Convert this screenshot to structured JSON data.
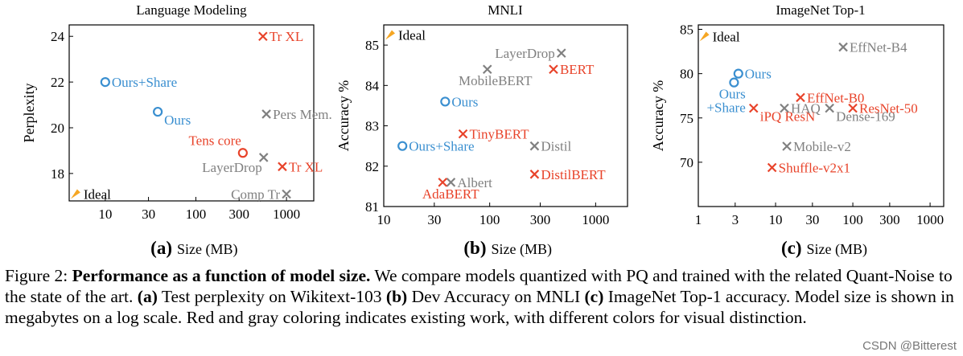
{
  "chart_data": [
    {
      "type": "scatter",
      "title": "Language Modeling",
      "panel_letter": "(a)",
      "xlabel": "Size (MB)",
      "ylabel": "Perplexity",
      "x_scale": "log",
      "xlim": [
        4,
        2000
      ],
      "ylim": [
        16.8,
        24.5
      ],
      "x_ticks": [
        10,
        30,
        100,
        300,
        1000
      ],
      "x_tick_labels": [
        "10",
        "30",
        "100",
        "300",
        "1000"
      ],
      "y_ticks": [
        18,
        20,
        22,
        24
      ],
      "y_tick_labels": [
        "18",
        "20",
        "22",
        "24"
      ],
      "ideal": {
        "label": "Ideal",
        "x": 4.7,
        "y": 17.1
      },
      "points": [
        {
          "label": "Tr XL",
          "x": 550,
          "y": 24.0,
          "marker": "x",
          "color": "red",
          "label_pos": "right"
        },
        {
          "label": "Ours+Share",
          "x": 10,
          "y": 22.0,
          "marker": "o",
          "color": "blue",
          "label_pos": "right"
        },
        {
          "label": "Ours",
          "x": 38,
          "y": 20.7,
          "marker": "o",
          "color": "blue",
          "label_pos": "below-right"
        },
        {
          "label": "Pers Mem.",
          "x": 600,
          "y": 20.6,
          "marker": "x",
          "color": "gray",
          "label_pos": "right"
        },
        {
          "label": "Tens core",
          "x": 330,
          "y": 18.9,
          "marker": "o",
          "color": "red",
          "label_pos": "above-left"
        },
        {
          "label": "LayerDrop",
          "x": 560,
          "y": 18.7,
          "marker": "x",
          "color": "gray",
          "label_pos": "below-left"
        },
        {
          "label": "Tr XL",
          "x": 900,
          "y": 18.3,
          "marker": "x",
          "color": "red",
          "label_pos": "right"
        },
        {
          "label": "Comp Tr",
          "x": 1000,
          "y": 17.1,
          "marker": "x",
          "color": "gray",
          "label_pos": "left"
        }
      ]
    },
    {
      "type": "scatter",
      "title": "MNLI",
      "panel_letter": "(b)",
      "xlabel": "Size (MB)",
      "ylabel": "Accuracy %",
      "x_scale": "log",
      "xlim": [
        10,
        2000
      ],
      "ylim": [
        81,
        85.5
      ],
      "x_ticks": [
        10,
        30,
        100,
        300,
        1000
      ],
      "x_tick_labels": [
        "10",
        "30",
        "100",
        "300",
        "1000"
      ],
      "y_ticks": [
        81,
        82,
        83,
        84,
        85
      ],
      "y_tick_labels": [
        "81",
        "82",
        "83",
        "84",
        "85"
      ],
      "ideal": {
        "label": "Ideal",
        "x": 11.5,
        "y": 85.25
      },
      "points": [
        {
          "label": "LayerDrop",
          "x": 475,
          "y": 84.8,
          "marker": "x",
          "color": "gray",
          "label_pos": "left"
        },
        {
          "label": "BERT",
          "x": 400,
          "y": 84.4,
          "marker": "x",
          "color": "red",
          "label_pos": "right"
        },
        {
          "label": "MobileBERT",
          "x": 95,
          "y": 84.4,
          "marker": "x",
          "color": "gray",
          "label_pos": "below"
        },
        {
          "label": "Ours",
          "x": 38,
          "y": 83.6,
          "marker": "o",
          "color": "blue",
          "label_pos": "right"
        },
        {
          "label": "TinyBERT",
          "x": 56,
          "y": 82.8,
          "marker": "x",
          "color": "red",
          "label_pos": "right"
        },
        {
          "label": "Ours+Share",
          "x": 15,
          "y": 82.5,
          "marker": "o",
          "color": "blue",
          "label_pos": "right"
        },
        {
          "label": "Distil",
          "x": 265,
          "y": 82.5,
          "marker": "x",
          "color": "gray",
          "label_pos": "right"
        },
        {
          "label": "DistilBERT",
          "x": 265,
          "y": 81.8,
          "marker": "x",
          "color": "red",
          "label_pos": "right"
        },
        {
          "label": "Albert",
          "x": 43,
          "y": 81.6,
          "marker": "x",
          "color": "gray",
          "label_pos": "right"
        },
        {
          "label": "AdaBERT",
          "x": 36,
          "y": 81.6,
          "marker": "x",
          "color": "red",
          "label_pos": "below"
        }
      ]
    },
    {
      "type": "scatter",
      "title": "ImageNet Top-1",
      "panel_letter": "(c)",
      "xlabel": "Size (MB)",
      "ylabel": "Accuracy %",
      "x_scale": "log",
      "xlim": [
        1,
        1500
      ],
      "ylim": [
        65,
        85.5
      ],
      "x_ticks": [
        1,
        3,
        10,
        30,
        100,
        300,
        1000
      ],
      "x_tick_labels": [
        "1",
        "3",
        "10",
        "30",
        "100",
        "300",
        "1000"
      ],
      "y_ticks": [
        70,
        75,
        80,
        85
      ],
      "y_tick_labels": [
        "70",
        "75",
        "80",
        "85"
      ],
      "ideal": {
        "label": "Ideal",
        "x": 1.2,
        "y": 84.2
      },
      "points": [
        {
          "label": "EffNet-B4",
          "x": 75,
          "y": 83.0,
          "marker": "x",
          "color": "gray",
          "label_pos": "right"
        },
        {
          "label": "Ours",
          "x": 3.3,
          "y": 80.0,
          "marker": "o",
          "color": "blue",
          "label_pos": "right"
        },
        {
          "label": "",
          "x": 2.9,
          "y": 79.0,
          "marker": "o",
          "color": "blue",
          "label_pos": "none"
        },
        {
          "label": "Ours +Share",
          "x": 5.2,
          "y": 76.1,
          "marker": "none",
          "color": "blue",
          "label_pos": "left-stack"
        },
        {
          "label": "iPQ ResN",
          "x": 5.2,
          "y": 76.1,
          "marker": "x",
          "color": "red",
          "label_pos": "below-right"
        },
        {
          "label": "HAQ",
          "x": 13,
          "y": 76.1,
          "marker": "x",
          "color": "gray",
          "label_pos": "right"
        },
        {
          "label": "Dense-169",
          "x": 50,
          "y": 76.1,
          "marker": "x",
          "color": "gray",
          "label_pos": "below-right"
        },
        {
          "label": "EffNet-B0",
          "x": 21,
          "y": 77.3,
          "marker": "x",
          "color": "red",
          "label_pos": "right"
        },
        {
          "label": "ResNet-50",
          "x": 100,
          "y": 76.1,
          "marker": "x",
          "color": "red",
          "label_pos": "right"
        },
        {
          "label": "Mobile-v2",
          "x": 14,
          "y": 71.8,
          "marker": "x",
          "color": "gray",
          "label_pos": "right"
        },
        {
          "label": "Shuffle-v2x1",
          "x": 9,
          "y": 69.4,
          "marker": "x",
          "color": "red",
          "label_pos": "right"
        }
      ]
    }
  ],
  "colors": {
    "red": "#e8432a",
    "blue": "#3a8fd0",
    "gray": "#808080",
    "ideal": "#f5a623",
    "axis": "#000000"
  },
  "caption": {
    "prefix": "Figure 2: ",
    "title": "Performance as a function of model size.",
    "sentence1": " We compare models quantized with PQ and trained with the related Quant-Noise to the state of the art. ",
    "a_label": "(a)",
    "a_text": " Test perplexity on Wikitext-103 ",
    "b_label": "(b)",
    "b_text": " Dev Accuracy on MNLI ",
    "c_label": "(c)",
    "c_text": " ImageNet Top-1 accuracy. Model size is shown in megabytes on a log scale. Red and gray coloring indicates existing work, with different colors for visual distinction."
  },
  "watermark": "CSDN @Bitterest"
}
